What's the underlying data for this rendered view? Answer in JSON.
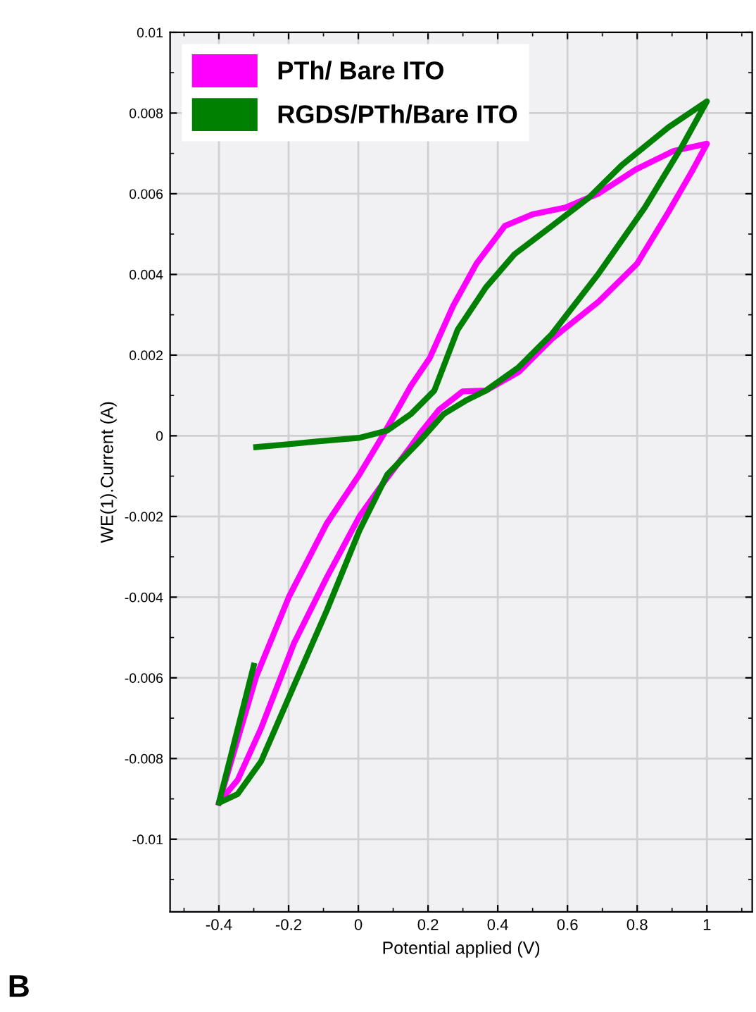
{
  "chart_data": {
    "type": "line",
    "xlabel": "Potential applied (V)",
    "ylabel": "WE(1).Current (A)",
    "annotations": [
      "B"
    ],
    "xlim": [
      -0.54,
      1.13
    ],
    "ylim": [
      -0.0118,
      0.01
    ],
    "xticks": [
      -0.4,
      -0.2,
      0,
      0.2,
      0.4,
      0.6,
      0.8,
      1
    ],
    "yticks": [
      -0.01,
      -0.008,
      -0.006,
      -0.004,
      -0.002,
      0,
      0.002,
      0.004,
      0.006,
      0.008,
      0.01
    ],
    "grid": true,
    "legend": "top left",
    "marker": "none",
    "line_style": "solid",
    "series": [
      {
        "name": "PTh/ Bare ITO",
        "color": "#ff00ff",
        "x": [
          -0.4,
          -0.293,
          -0.199,
          -0.091,
          0.003,
          0.07,
          0.151,
          0.205,
          0.272,
          0.339,
          0.42,
          0.5,
          0.595,
          0.69,
          0.796,
          0.904,
          1.0,
          0.96,
          0.89,
          0.8,
          0.69,
          0.555,
          0.46,
          0.366,
          0.299,
          0.232,
          0.178,
          0.151,
          0.07,
          0.003,
          -0.091,
          -0.185,
          -0.279,
          -0.346,
          -0.397
        ],
        "values": [
          -0.0091,
          -0.00597,
          -0.00399,
          -0.00218,
          -0.00096,
          0.0,
          0.00124,
          0.00193,
          0.00322,
          0.00427,
          0.0052,
          0.00549,
          0.00566,
          0.00601,
          0.0066,
          0.00706,
          0.00724,
          0.0066,
          0.00555,
          0.00427,
          0.00333,
          0.0024,
          0.00158,
          0.00112,
          0.0011,
          0.00065,
          7e-05,
          -0.00026,
          -0.00119,
          -0.002,
          -0.00352,
          -0.00515,
          -0.00725,
          -0.00853,
          -0.00906
        ]
      },
      {
        "name": "RGDS/PTh/Bare ITO",
        "color": "#008000",
        "x": [
          -0.3,
          -0.4,
          -0.346,
          -0.279,
          -0.185,
          -0.091,
          0.003,
          0.083,
          0.175,
          0.245,
          0.312,
          0.366,
          0.46,
          0.555,
          0.69,
          0.822,
          0.929,
          1.0,
          0.89,
          0.756,
          0.661,
          0.555,
          0.448,
          0.366,
          0.285,
          0.218,
          0.151,
          0.083,
          0.003,
          -0.118,
          -0.212,
          -0.293
        ],
        "values": [
          -0.0057,
          -0.0091,
          -0.00888,
          -0.00807,
          -0.0062,
          -0.00434,
          -0.00235,
          -0.00096,
          -0.00014,
          0.00054,
          0.00089,
          0.00112,
          0.0017,
          0.00252,
          0.00403,
          0.00566,
          0.00718,
          0.00829,
          0.00765,
          0.00671,
          0.0059,
          0.0052,
          0.0045,
          0.00368,
          0.00263,
          0.00112,
          0.00054,
          0.00013,
          -5e-05,
          -0.00014,
          -0.00022,
          -0.00028
        ]
      }
    ]
  }
}
